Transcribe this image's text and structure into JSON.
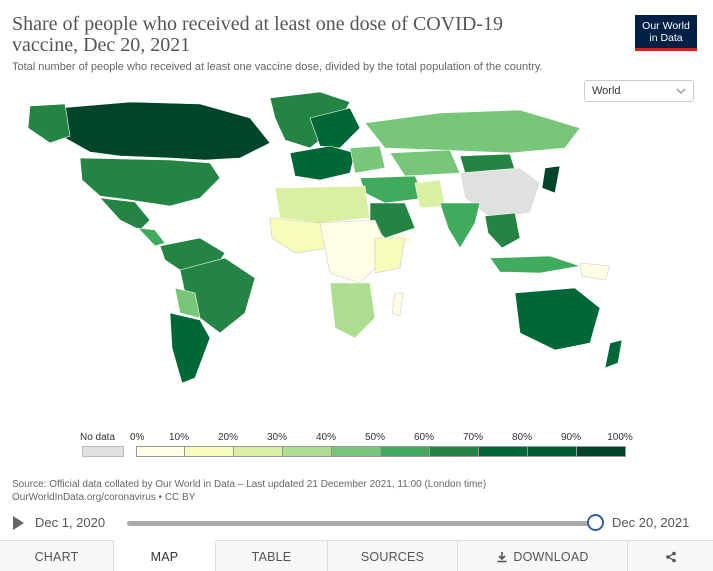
{
  "header": {
    "title": "Share of people who received at least one dose of COVID-19 vaccine, Dec 20, 2021",
    "subtitle": "Total number of people who received at least one vaccine dose, divided by the total population of the country.",
    "logo_line1": "Our World",
    "logo_line2": "in Data"
  },
  "region_select": {
    "value": "World",
    "icon": "chevron-down-icon"
  },
  "legend": {
    "nodata_label": "No data",
    "nodata_color": "#e0e0e0",
    "ticks": [
      "0%",
      "10%",
      "20%",
      "30%",
      "40%",
      "50%",
      "60%",
      "70%",
      "80%",
      "90%",
      "100%"
    ],
    "bins": [
      {
        "color": "#ffffe5"
      },
      {
        "color": "#f7fcb9"
      },
      {
        "color": "#d9f0a3"
      },
      {
        "color": "#addd8e"
      },
      {
        "color": "#78c679"
      },
      {
        "color": "#41ab5d"
      },
      {
        "color": "#238443"
      },
      {
        "color": "#006837"
      },
      {
        "color": "#005a32"
      },
      {
        "color": "#004529"
      }
    ]
  },
  "source": {
    "line1": "Source: Official data collated by Our World in Data – Last updated 21 December 2021, 11:00 (London time)",
    "line2": "OurWorldInData.org/coronavirus • CC BY"
  },
  "timeline": {
    "start": "Dec 1, 2020",
    "end": "Dec 20, 2021",
    "progress": 1.0,
    "play_icon": "play-icon"
  },
  "tabs": [
    {
      "label": "CHART"
    },
    {
      "label": "MAP"
    },
    {
      "label": "TABLE"
    },
    {
      "label": "SOURCES"
    },
    {
      "label": "DOWNLOAD",
      "icon": "download-icon"
    },
    {
      "label": "",
      "icon": "share-icon"
    }
  ],
  "active_tab": "MAP"
}
